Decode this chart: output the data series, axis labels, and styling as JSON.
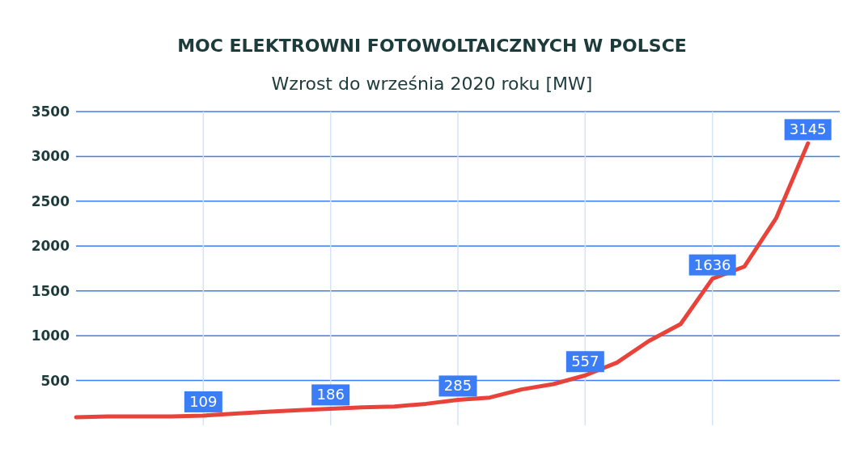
{
  "chart_data": {
    "type": "line",
    "title": "MOC ELEKTROWNI FOTOWOLTAICZNYCH W POLSCE",
    "subtitle": "Wzrost do września 2020 roku [MW]",
    "categories": [
      null,
      null,
      null,
      null,
      null,
      null,
      null,
      null,
      null,
      null,
      null,
      null,
      null,
      null,
      null,
      null,
      null,
      null,
      null,
      null,
      null,
      null,
      null,
      null
    ],
    "series": [
      {
        "color": "#e8433a",
        "values": [
          90,
          100,
          100,
          100,
          109,
          130,
          150,
          170,
          186,
          200,
          210,
          240,
          285,
          310,
          400,
          460,
          557,
          700,
          940,
          1130,
          1636,
          1770,
          2310,
          3145
        ],
        "value_labels": [
          null,
          null,
          null,
          null,
          "109",
          null,
          null,
          null,
          "186",
          null,
          null,
          null,
          "285",
          null,
          null,
          null,
          "557",
          null,
          null,
          null,
          "1636",
          null,
          null,
          "3145"
        ]
      }
    ],
    "ylim": [
      0,
      3500
    ],
    "yticks": [
      500,
      1000,
      1500,
      2000,
      2500,
      3000,
      3500
    ],
    "tick_labels": "y",
    "grid": true,
    "legend": false,
    "marker": "none",
    "line_style": "solid"
  }
}
